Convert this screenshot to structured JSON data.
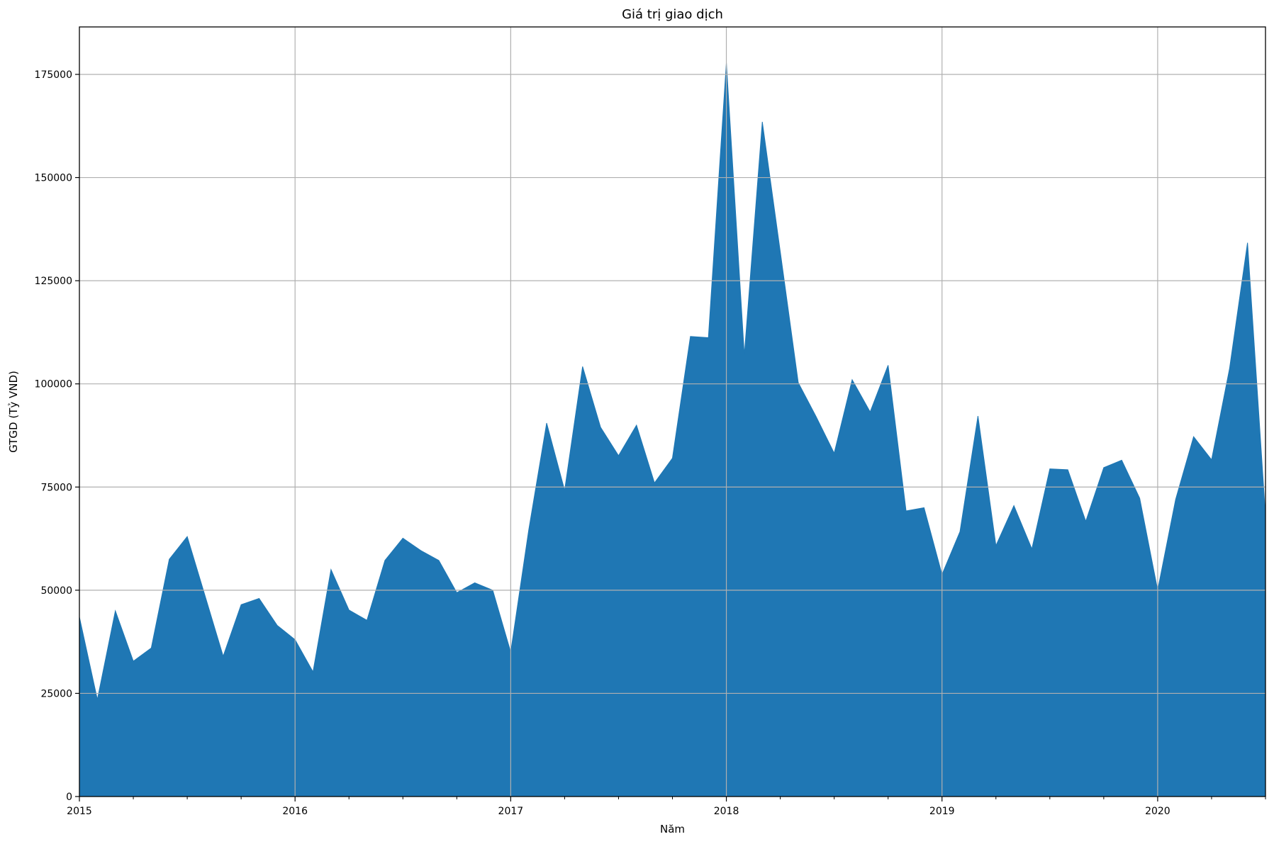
{
  "chart_data": {
    "type": "area",
    "title": "Giá trị giao dịch",
    "xlabel": "Năm",
    "ylabel": "GTGD (Tỷ VND)",
    "xlim": [
      "2015-01",
      "2020-07"
    ],
    "ylim": [
      0,
      186500
    ],
    "grid": true,
    "fill_color": "#1f77b4",
    "x_ticks": [
      "2015",
      "2016",
      "2017",
      "2018",
      "2019",
      "2020"
    ],
    "y_ticks": [
      "0",
      "25000",
      "50000",
      "75000",
      "100000",
      "125000",
      "150000",
      "175000"
    ],
    "x": [
      "2015-01",
      "2015-02",
      "2015-03",
      "2015-04",
      "2015-05",
      "2015-06",
      "2015-07",
      "2015-08",
      "2015-09",
      "2015-10",
      "2015-11",
      "2015-12",
      "2016-01",
      "2016-02",
      "2016-03",
      "2016-04",
      "2016-05",
      "2016-06",
      "2016-07",
      "2016-08",
      "2016-09",
      "2016-10",
      "2016-11",
      "2016-12",
      "2017-01",
      "2017-02",
      "2017-03",
      "2017-04",
      "2017-05",
      "2017-06",
      "2017-07",
      "2017-08",
      "2017-09",
      "2017-10",
      "2017-11",
      "2017-12",
      "2018-01",
      "2018-02",
      "2018-03",
      "2018-04",
      "2018-05",
      "2018-06",
      "2018-07",
      "2018-08",
      "2018-09",
      "2018-10",
      "2018-11",
      "2018-12",
      "2019-01",
      "2019-02",
      "2019-03",
      "2019-04",
      "2019-05",
      "2019-06",
      "2019-07",
      "2019-08",
      "2019-09",
      "2019-10",
      "2019-11",
      "2019-12",
      "2020-01",
      "2020-02",
      "2020-03",
      "2020-04",
      "2020-05",
      "2020-06",
      "2020-07"
    ],
    "series": [
      {
        "values": [
          43500,
          23500,
          45000,
          32800,
          36000,
          57500,
          63000,
          48500,
          34000,
          46500,
          48000,
          41500,
          38000,
          30200,
          55000,
          45200,
          42700,
          57200,
          62600,
          59600,
          57200,
          49400,
          51800,
          50000,
          35000,
          64500,
          90500,
          74200,
          104200,
          89500,
          82600,
          90000,
          76000,
          82000,
          111500,
          111200,
          177800,
          107000,
          163500,
          132000,
          100300,
          92000,
          83200,
          101000,
          93200,
          104500,
          69200,
          70000,
          53800,
          64200,
          92200,
          60800,
          70500,
          60000,
          79400,
          79200,
          66700,
          79700,
          81500,
          72300,
          50000,
          72000,
          87200,
          81600,
          103700,
          134200,
          68000
        ]
      }
    ]
  }
}
